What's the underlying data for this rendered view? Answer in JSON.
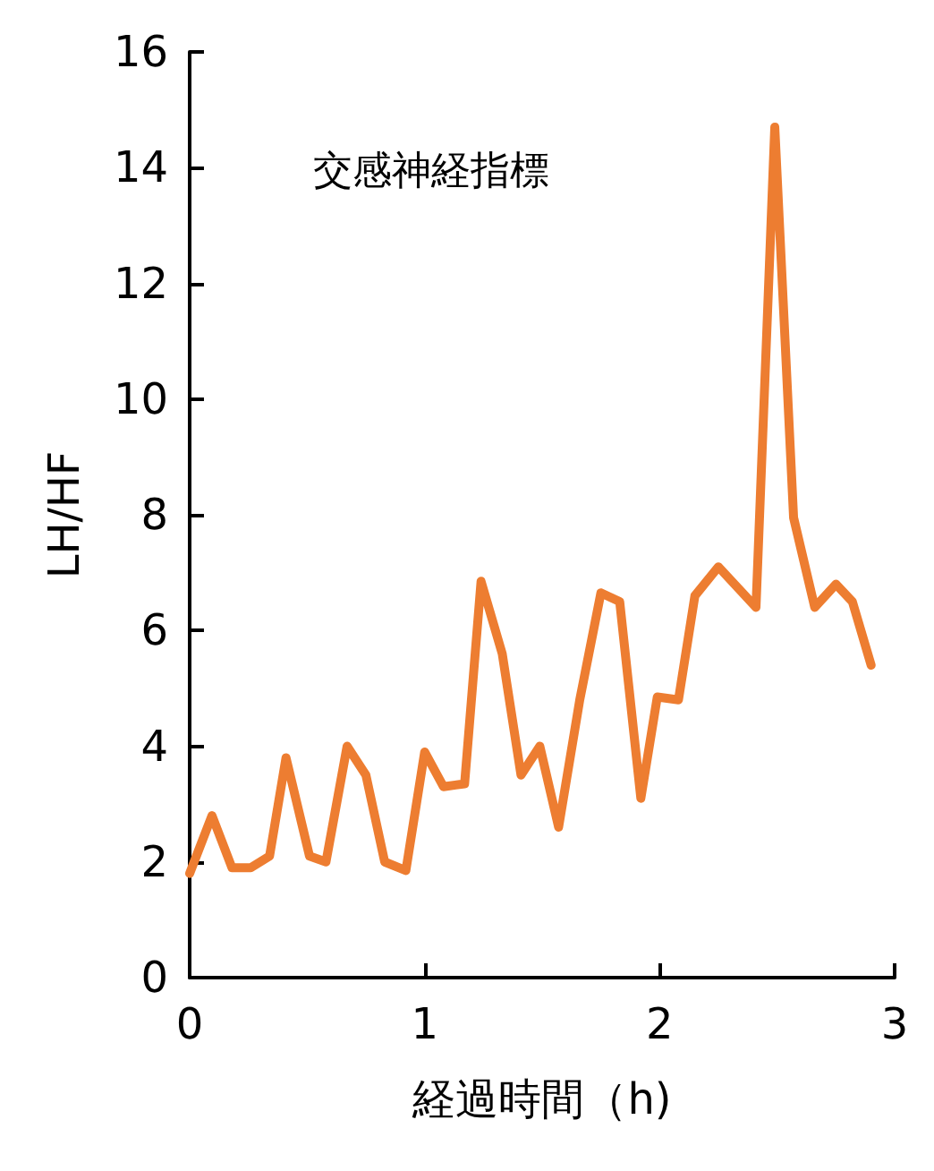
{
  "chart_data": {
    "type": "line",
    "title": "交感神経指標",
    "xlabel": "経過時間（h)",
    "ylabel": "LH/HF",
    "x": [
      0,
      0.095,
      0.18,
      0.26,
      0.34,
      0.41,
      0.51,
      0.58,
      0.67,
      0.75,
      0.83,
      0.92,
      1.0,
      1.08,
      1.17,
      1.24,
      1.33,
      1.41,
      1.49,
      1.57,
      1.66,
      1.75,
      1.83,
      1.92,
      1.99,
      2.08,
      2.15,
      2.25,
      2.41,
      2.49,
      2.57,
      2.66,
      2.75,
      2.82,
      2.9
    ],
    "series": [
      {
        "color": "#ed7d31",
        "values": [
          1.8,
          2.8,
          1.9,
          1.9,
          2.1,
          3.8,
          2.1,
          2.0,
          4.0,
          3.5,
          2.0,
          1.85,
          3.9,
          3.3,
          3.35,
          6.85,
          5.6,
          3.5,
          4.0,
          2.6,
          4.8,
          6.65,
          6.5,
          3.1,
          4.85,
          4.8,
          6.6,
          7.1,
          6.4,
          14.7,
          7.95,
          6.4,
          6.8,
          6.5,
          5.4
        ]
      }
    ],
    "xlim": [
      0,
      3
    ],
    "xticks": [
      0,
      1,
      2,
      3
    ],
    "ylim": [
      0,
      16
    ],
    "yticks": [
      0,
      2,
      4,
      6,
      8,
      10,
      12,
      14,
      16
    ],
    "grid": false,
    "marker": "none",
    "line_style": "solid"
  }
}
